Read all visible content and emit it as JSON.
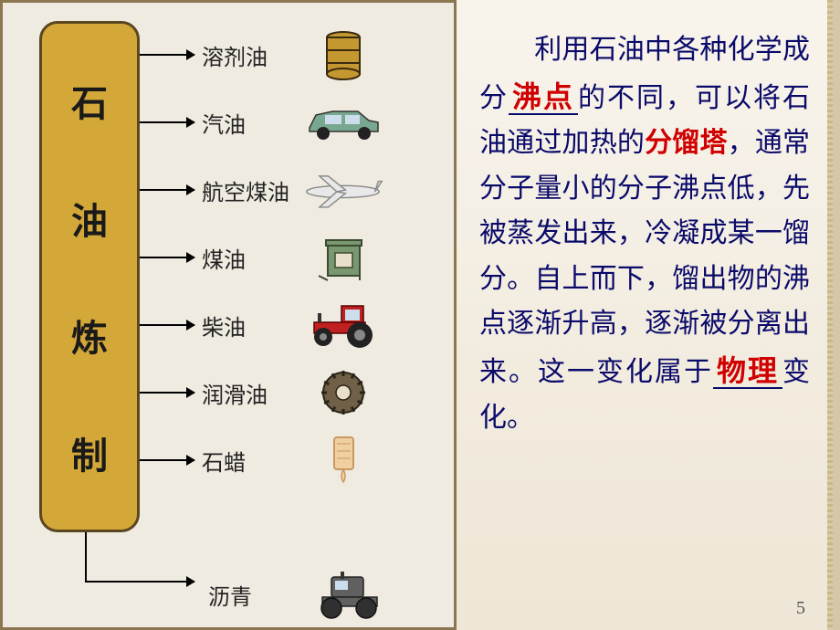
{
  "refinery": {
    "box_color": "#d4a838",
    "box_border": "#5a4620",
    "title_chars": [
      "石",
      "油",
      "炼",
      "制"
    ],
    "char_color": "#1a1a1a"
  },
  "products": [
    {
      "label": "溶剂油",
      "icon": "barrel"
    },
    {
      "label": "汽油",
      "icon": "car"
    },
    {
      "label": "航空煤油",
      "icon": "plane"
    },
    {
      "label": "煤油",
      "icon": "stove"
    },
    {
      "label": "柴油",
      "icon": "tractor"
    },
    {
      "label": "润滑油",
      "icon": "gear"
    },
    {
      "label": "石蜡",
      "icon": "drip"
    }
  ],
  "bottom_product": {
    "label": "沥青",
    "icon": "roller"
  },
  "text": {
    "part1": "利用石油中各种化学成分",
    "hl1": "沸点",
    "part2": "的不同，可以将石油通过加热的",
    "hl2": "分馏塔",
    "part3": "，通常分子量小的分子沸点低，先被蒸发出来，冷凝成某一馏分。自上而下，馏出物的沸点逐渐升高，逐渐被分离出来。这一变化属于",
    "hl3": "物理",
    "part4": "变化。"
  },
  "colors": {
    "text_main": "#0a0a6a",
    "highlight": "#d00000",
    "bg_left": "#f0ebe0",
    "bg_right_top": "#f8f4ec",
    "bg_right_bottom": "#eee6d6"
  },
  "page_number": "5",
  "icons": {
    "barrel": {
      "fill": "#c49830",
      "stroke": "#3a2a10"
    },
    "car": {
      "body": "#78a890",
      "window": "#cde"
    },
    "plane": {
      "fill": "#e8e8e8",
      "stroke": "#888"
    },
    "stove": {
      "fill": "#7a9870",
      "stroke": "#3a4a30"
    },
    "tractor": {
      "body": "#c02020",
      "wheel": "#222"
    },
    "gear": {
      "fill": "#706048",
      "stroke": "#2a2418"
    },
    "drip": {
      "fill": "#f0d0a0",
      "stroke": "#c89860"
    },
    "roller": {
      "body": "#606060",
      "wheel": "#303030"
    }
  }
}
